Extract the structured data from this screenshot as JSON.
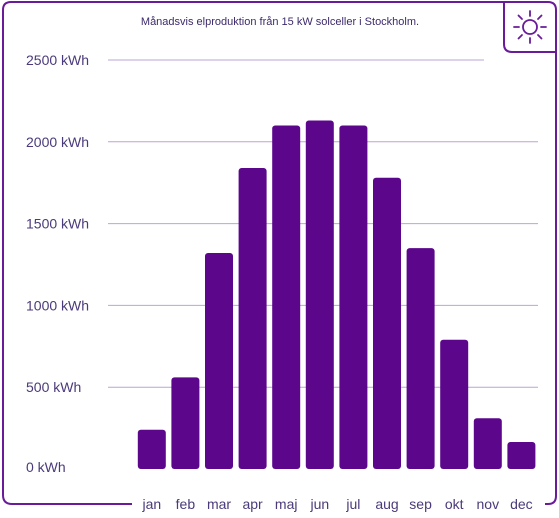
{
  "chart_data": {
    "type": "bar",
    "title": "Månadsvis elproduktion från 15 kW solceller i Stockholm.",
    "categories": [
      "jan",
      "feb",
      "mar",
      "apr",
      "maj",
      "jun",
      "jul",
      "aug",
      "sep",
      "okt",
      "nov",
      "dec"
    ],
    "values": [
      240,
      560,
      1320,
      1840,
      2100,
      2130,
      2100,
      1780,
      1350,
      790,
      310,
      165
    ],
    "ylabel": "",
    "xlabel": "",
    "ylim": [
      0,
      2500
    ],
    "yticks": [
      0,
      500,
      1000,
      1500,
      2000,
      2500
    ],
    "ytick_labels": [
      "0 kWh",
      "500 kWh",
      "1000 kWh",
      "1500 kWh",
      "2000 kWh",
      "2500 kWh"
    ],
    "grid": true,
    "colors": {
      "bar": "#5c068c",
      "frame": "#6a1b9a",
      "grid": "#b9a6d4"
    }
  },
  "badge": {
    "icon": "sun-icon"
  }
}
